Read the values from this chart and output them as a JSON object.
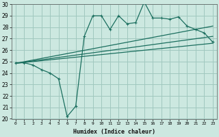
{
  "xlabel": "Humidex (Indice chaleur)",
  "ylabel": "",
  "xlim": [
    -0.5,
    23.5
  ],
  "ylim": [
    20,
    30
  ],
  "xticks": [
    0,
    1,
    2,
    3,
    4,
    5,
    6,
    7,
    8,
    9,
    10,
    11,
    12,
    13,
    14,
    15,
    16,
    17,
    18,
    19,
    20,
    21,
    22,
    23
  ],
  "yticks": [
    20,
    21,
    22,
    23,
    24,
    25,
    26,
    27,
    28,
    29,
    30
  ],
  "bg_color": "#cce8e0",
  "grid_color": "#a0c8be",
  "line_color": "#1a6e5e",
  "main_x": [
    0,
    1,
    2,
    3,
    4,
    5,
    6,
    7,
    8,
    9,
    10,
    11,
    12,
    13,
    14,
    15,
    16,
    17,
    18,
    19,
    20,
    21,
    22,
    23
  ],
  "main_y": [
    24.9,
    24.9,
    24.7,
    24.3,
    24.0,
    23.5,
    20.2,
    21.1,
    27.2,
    29.0,
    29.0,
    27.8,
    29.0,
    28.3,
    28.4,
    30.2,
    28.8,
    28.8,
    28.7,
    28.9,
    28.1,
    27.8,
    27.5,
    26.7
  ],
  "trend_lines": [
    {
      "x": [
        0,
        23
      ],
      "y": [
        24.85,
        28.1
      ]
    },
    {
      "x": [
        0,
        23
      ],
      "y": [
        24.85,
        27.2
      ]
    },
    {
      "x": [
        0,
        23
      ],
      "y": [
        24.85,
        26.6
      ]
    }
  ]
}
